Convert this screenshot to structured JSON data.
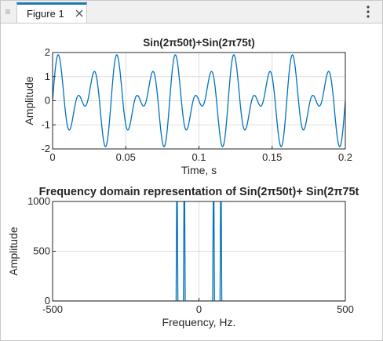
{
  "tab": {
    "label": "Figure 1",
    "close_icon": "close-icon",
    "menu_icon": "vertical-dots-icon",
    "grip_icon": "drag-grip-icon",
    "accent": "#1f77b4"
  },
  "chart_data": [
    {
      "type": "line",
      "title": "Sin(2πi50t)+Sin(2πi75t)",
      "title_display": "Sin(2π50t)+Sin(2π75t)",
      "xlabel": "Time, s",
      "ylabel": "Amplitude",
      "xlim": [
        0,
        0.2
      ],
      "ylim": [
        -2,
        2
      ],
      "xticks": [
        "0",
        "0.05",
        "0.1",
        "0.15",
        "0.2"
      ],
      "yticks": [
        "2",
        "1",
        "0",
        "-1",
        "-2"
      ],
      "grid": true,
      "series": [
        {
          "color": "#0072BD",
          "function": "sin(2*pi*50*t)+sin(2*pi*75*t)",
          "t_range": [
            0,
            0.2
          ]
        }
      ]
    },
    {
      "type": "line",
      "title": "Frequency domain representation of Sin(2π50t)+ Sin(2π75t",
      "xlabel": "Frequency, Hz.",
      "ylabel": "Amplitude",
      "xlim": [
        -500,
        500
      ],
      "ylim": [
        0,
        1000
      ],
      "xticks": [
        "-500",
        "0",
        "500"
      ],
      "yticks": [
        "1000",
        "500",
        "0"
      ],
      "grid": true,
      "series": [
        {
          "color": "#0072BD",
          "peaks_hz": [
            -75,
            -50,
            50,
            75
          ],
          "peak_values": [
            1000,
            1000,
            1000,
            1000
          ]
        }
      ]
    }
  ]
}
